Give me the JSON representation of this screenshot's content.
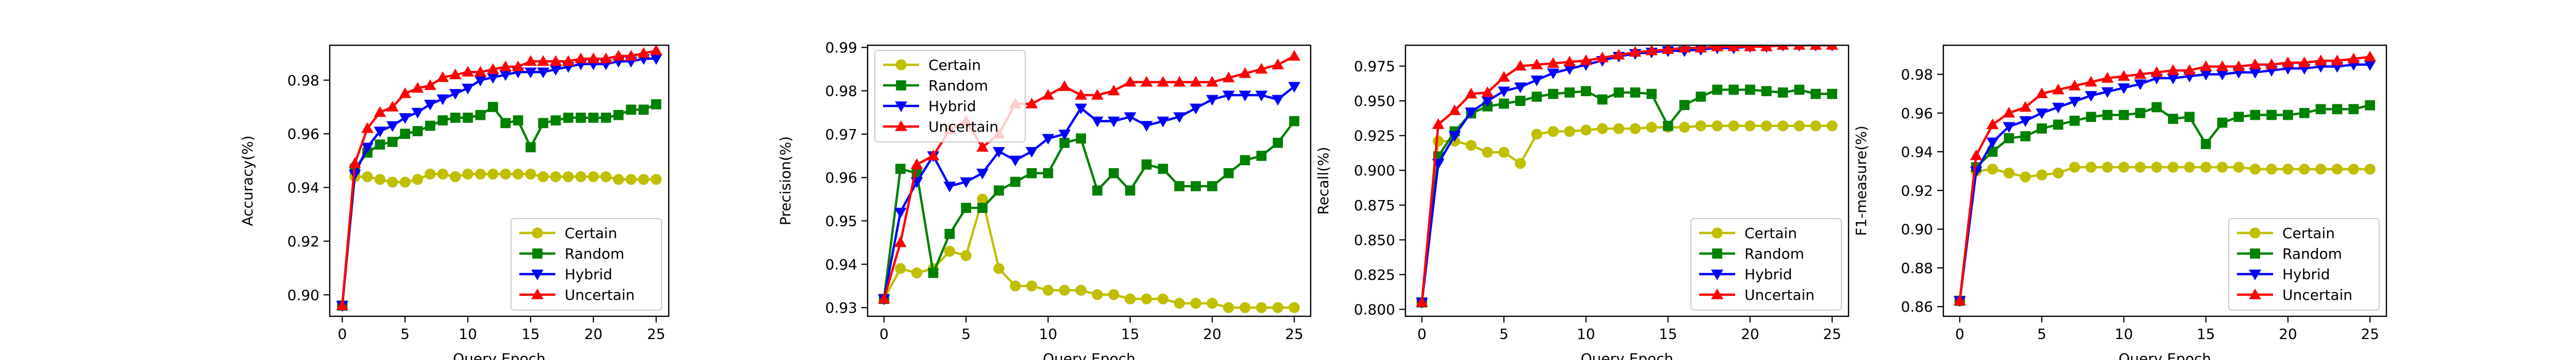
{
  "chart_data": [
    {
      "type": "line",
      "xlabel": "Query Epoch",
      "ylabel": "Accuracy(%)",
      "xlim": [
        -1,
        26
      ],
      "ylim": [
        0.892,
        0.993
      ],
      "xticks": [
        0,
        5,
        10,
        15,
        20,
        25
      ],
      "xtick_labels": [
        "0",
        "5",
        "10",
        "15",
        "20",
        "25"
      ],
      "yticks": [
        0.9,
        0.92,
        0.94,
        0.96,
        0.98
      ],
      "ytick_labels": [
        "0.90",
        "0.92",
        "0.94",
        "0.96",
        "0.98"
      ],
      "legend_position": "lower-right",
      "grid": false,
      "x": [
        0,
        1,
        2,
        3,
        4,
        5,
        6,
        7,
        8,
        9,
        10,
        11,
        12,
        13,
        14,
        15,
        16,
        17,
        18,
        19,
        20,
        21,
        22,
        23,
        24,
        25
      ],
      "series": [
        {
          "name": "Certain",
          "color": "#bfbf00",
          "marker": "circle",
          "values": [
            0.896,
            0.944,
            0.944,
            0.943,
            0.942,
            0.942,
            0.943,
            0.945,
            0.945,
            0.944,
            0.945,
            0.945,
            0.945,
            0.945,
            0.945,
            0.945,
            0.944,
            0.944,
            0.944,
            0.944,
            0.944,
            0.944,
            0.943,
            0.943,
            0.943,
            0.943
          ]
        },
        {
          "name": "Random",
          "color": "#008000",
          "marker": "square",
          "values": [
            0.896,
            0.947,
            0.953,
            0.956,
            0.957,
            0.96,
            0.961,
            0.963,
            0.965,
            0.966,
            0.966,
            0.967,
            0.97,
            0.964,
            0.965,
            0.955,
            0.964,
            0.965,
            0.966,
            0.966,
            0.966,
            0.966,
            0.967,
            0.969,
            0.969,
            0.971
          ]
        },
        {
          "name": "Hybrid",
          "color": "#0000ff",
          "marker": "triangle-down",
          "values": [
            0.896,
            0.945,
            0.955,
            0.961,
            0.963,
            0.966,
            0.968,
            0.971,
            0.973,
            0.975,
            0.977,
            0.98,
            0.981,
            0.982,
            0.983,
            0.983,
            0.983,
            0.984,
            0.985,
            0.986,
            0.986,
            0.986,
            0.987,
            0.987,
            0.988,
            0.988
          ]
        },
        {
          "name": "Uncertain",
          "color": "#ff0000",
          "marker": "triangle-up",
          "values": [
            0.896,
            0.949,
            0.962,
            0.968,
            0.97,
            0.975,
            0.977,
            0.978,
            0.981,
            0.982,
            0.983,
            0.983,
            0.984,
            0.985,
            0.985,
            0.987,
            0.987,
            0.987,
            0.987,
            0.988,
            0.988,
            0.988,
            0.989,
            0.989,
            0.99,
            0.991
          ]
        }
      ]
    },
    {
      "type": "line",
      "xlabel": "Query Epoch",
      "ylabel": "Precision(%)",
      "xlim": [
        -1,
        26
      ],
      "ylim": [
        0.928,
        0.9905
      ],
      "xticks": [
        0,
        5,
        10,
        15,
        20,
        25
      ],
      "xtick_labels": [
        "0",
        "5",
        "10",
        "15",
        "20",
        "25"
      ],
      "yticks": [
        0.93,
        0.94,
        0.95,
        0.96,
        0.97,
        0.98,
        0.99
      ],
      "ytick_labels": [
        "0.93",
        "0.94",
        "0.95",
        "0.96",
        "0.97",
        "0.98",
        "0.99"
      ],
      "legend_position": "top-left",
      "grid": false,
      "x": [
        0,
        1,
        2,
        3,
        4,
        5,
        6,
        7,
        8,
        9,
        10,
        11,
        12,
        13,
        14,
        15,
        16,
        17,
        18,
        19,
        20,
        21,
        22,
        23,
        24,
        25
      ],
      "series": [
        {
          "name": "Certain",
          "color": "#bfbf00",
          "marker": "circle",
          "values": [
            0.932,
            0.939,
            0.938,
            0.939,
            0.943,
            0.942,
            0.955,
            0.939,
            0.935,
            0.935,
            0.934,
            0.934,
            0.934,
            0.933,
            0.933,
            0.932,
            0.932,
            0.932,
            0.931,
            0.931,
            0.931,
            0.93,
            0.93,
            0.93,
            0.93,
            0.93
          ]
        },
        {
          "name": "Random",
          "color": "#008000",
          "marker": "square",
          "values": [
            0.932,
            0.962,
            0.961,
            0.938,
            0.947,
            0.953,
            0.953,
            0.957,
            0.959,
            0.961,
            0.961,
            0.968,
            0.969,
            0.957,
            0.961,
            0.957,
            0.963,
            0.962,
            0.958,
            0.958,
            0.958,
            0.961,
            0.964,
            0.965,
            0.968,
            0.973
          ]
        },
        {
          "name": "Hybrid",
          "color": "#0000ff",
          "marker": "triangle-down",
          "values": [
            0.932,
            0.952,
            0.959,
            0.965,
            0.958,
            0.959,
            0.961,
            0.966,
            0.964,
            0.966,
            0.969,
            0.97,
            0.976,
            0.973,
            0.973,
            0.974,
            0.972,
            0.973,
            0.974,
            0.976,
            0.978,
            0.979,
            0.979,
            0.979,
            0.978,
            0.981
          ]
        },
        {
          "name": "Uncertain",
          "color": "#ff0000",
          "marker": "triangle-up",
          "values": [
            0.932,
            0.945,
            0.963,
            0.965,
            0.971,
            0.973,
            0.967,
            0.97,
            0.977,
            0.977,
            0.979,
            0.981,
            0.979,
            0.979,
            0.98,
            0.982,
            0.982,
            0.982,
            0.982,
            0.982,
            0.982,
            0.983,
            0.984,
            0.985,
            0.986,
            0.988
          ]
        }
      ]
    },
    {
      "type": "line",
      "xlabel": "Query Epoch",
      "ylabel": "Recall(%)",
      "xlim": [
        -1,
        26
      ],
      "ylim": [
        0.795,
        0.99
      ],
      "xticks": [
        0,
        5,
        10,
        15,
        20,
        25
      ],
      "xtick_labels": [
        "0",
        "5",
        "10",
        "15",
        "20",
        "25"
      ],
      "yticks": [
        0.8,
        0.825,
        0.85,
        0.875,
        0.9,
        0.925,
        0.95,
        0.975
      ],
      "ytick_labels": [
        "0.800",
        "0.825",
        "0.850",
        "0.875",
        "0.900",
        "0.925",
        "0.950",
        "0.975"
      ],
      "legend_position": "lower-right",
      "grid": false,
      "x": [
        0,
        1,
        2,
        3,
        4,
        5,
        6,
        7,
        8,
        9,
        10,
        11,
        12,
        13,
        14,
        15,
        16,
        17,
        18,
        19,
        20,
        21,
        22,
        23,
        24,
        25
      ],
      "series": [
        {
          "name": "Certain",
          "color": "#bfbf00",
          "marker": "circle",
          "values": [
            0.805,
            0.921,
            0.921,
            0.918,
            0.913,
            0.913,
            0.905,
            0.926,
            0.928,
            0.928,
            0.929,
            0.93,
            0.93,
            0.93,
            0.931,
            0.931,
            0.931,
            0.932,
            0.932,
            0.932,
            0.932,
            0.932,
            0.932,
            0.932,
            0.932,
            0.932
          ]
        },
        {
          "name": "Random",
          "color": "#008000",
          "marker": "square",
          "values": [
            0.805,
            0.91,
            0.928,
            0.941,
            0.946,
            0.948,
            0.95,
            0.953,
            0.955,
            0.956,
            0.957,
            0.951,
            0.956,
            0.956,
            0.955,
            0.932,
            0.947,
            0.953,
            0.958,
            0.958,
            0.958,
            0.957,
            0.956,
            0.958,
            0.955,
            0.955
          ]
        },
        {
          "name": "Hybrid",
          "color": "#0000ff",
          "marker": "triangle-down",
          "values": [
            0.805,
            0.905,
            0.925,
            0.942,
            0.95,
            0.957,
            0.96,
            0.965,
            0.97,
            0.973,
            0.976,
            0.979,
            0.982,
            0.984,
            0.985,
            0.986,
            0.986,
            0.987,
            0.988,
            0.988,
            0.989,
            0.989,
            0.99,
            0.99,
            0.99,
            0.99
          ]
        },
        {
          "name": "Uncertain",
          "color": "#ff0000",
          "marker": "triangle-up",
          "values": [
            0.805,
            0.933,
            0.943,
            0.955,
            0.956,
            0.967,
            0.975,
            0.976,
            0.977,
            0.978,
            0.979,
            0.981,
            0.983,
            0.985,
            0.986,
            0.987,
            0.988,
            0.988,
            0.989,
            0.989,
            0.989,
            0.989,
            0.99,
            0.99,
            0.99,
            0.99
          ]
        }
      ]
    },
    {
      "type": "line",
      "xlabel": "Query Epoch",
      "ylabel": "F1-measure(%)",
      "xlim": [
        -1,
        26
      ],
      "ylim": [
        0.855,
        0.995
      ],
      "xticks": [
        0,
        5,
        10,
        15,
        20,
        25
      ],
      "xtick_labels": [
        "0",
        "5",
        "10",
        "15",
        "20",
        "25"
      ],
      "yticks": [
        0.86,
        0.88,
        0.9,
        0.92,
        0.94,
        0.96,
        0.98
      ],
      "ytick_labels": [
        "0.86",
        "0.88",
        "0.90",
        "0.92",
        "0.94",
        "0.96",
        "0.98"
      ],
      "legend_position": "lower-right",
      "grid": false,
      "x": [
        0,
        1,
        2,
        3,
        4,
        5,
        6,
        7,
        8,
        9,
        10,
        11,
        12,
        13,
        14,
        15,
        16,
        17,
        18,
        19,
        20,
        21,
        22,
        23,
        24,
        25
      ],
      "series": [
        {
          "name": "Certain",
          "color": "#bfbf00",
          "marker": "circle",
          "values": [
            0.863,
            0.93,
            0.931,
            0.929,
            0.927,
            0.928,
            0.929,
            0.932,
            0.932,
            0.932,
            0.932,
            0.932,
            0.932,
            0.932,
            0.932,
            0.932,
            0.932,
            0.932,
            0.931,
            0.931,
            0.931,
            0.931,
            0.931,
            0.931,
            0.931,
            0.931
          ]
        },
        {
          "name": "Random",
          "color": "#008000",
          "marker": "square",
          "values": [
            0.863,
            0.932,
            0.94,
            0.947,
            0.948,
            0.952,
            0.954,
            0.956,
            0.958,
            0.959,
            0.959,
            0.96,
            0.963,
            0.957,
            0.958,
            0.944,
            0.955,
            0.958,
            0.959,
            0.959,
            0.959,
            0.96,
            0.962,
            0.962,
            0.962,
            0.964
          ]
        },
        {
          "name": "Hybrid",
          "color": "#0000ff",
          "marker": "triangle-down",
          "values": [
            0.863,
            0.93,
            0.945,
            0.953,
            0.956,
            0.96,
            0.963,
            0.966,
            0.969,
            0.971,
            0.973,
            0.975,
            0.978,
            0.978,
            0.979,
            0.98,
            0.98,
            0.981,
            0.981,
            0.982,
            0.983,
            0.983,
            0.984,
            0.984,
            0.985,
            0.985
          ]
        },
        {
          "name": "Uncertain",
          "color": "#ff0000",
          "marker": "triangle-up",
          "values": [
            0.863,
            0.938,
            0.954,
            0.96,
            0.963,
            0.97,
            0.972,
            0.974,
            0.976,
            0.978,
            0.979,
            0.98,
            0.981,
            0.982,
            0.982,
            0.984,
            0.984,
            0.984,
            0.985,
            0.985,
            0.986,
            0.986,
            0.987,
            0.987,
            0.988,
            0.989
          ]
        }
      ]
    }
  ]
}
